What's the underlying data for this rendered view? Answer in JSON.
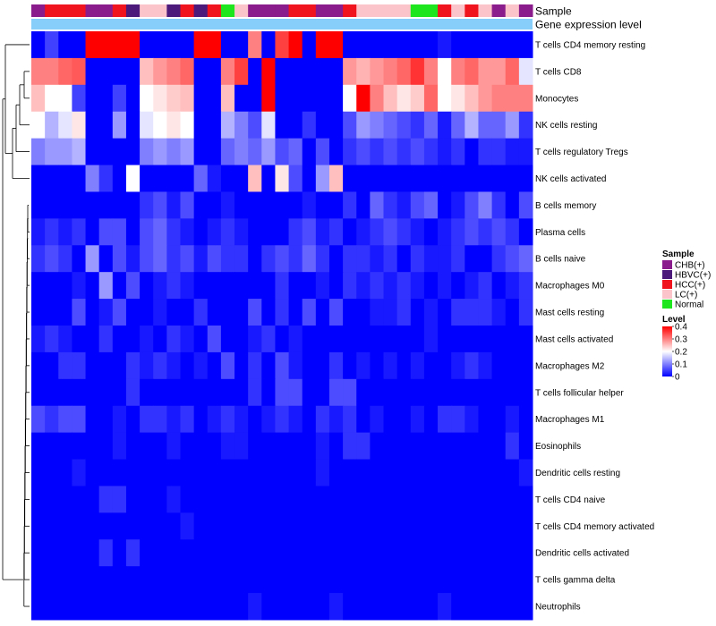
{
  "chart_data": {
    "type": "heatmap",
    "title": "",
    "annotation_rows": [
      "Sample",
      "Gene expression level"
    ],
    "sample_categories": [
      "CHB(+)",
      "HBVC(+)",
      "HCC(+)",
      "LC(+)",
      "Normal"
    ],
    "sample_colors": {
      "CHB(+)": "#8b1c8b",
      "HBVC(+)": "#4b1a7a",
      "HCC(+)": "#f0141e",
      "LC(+)": "#fbc4ca",
      "Normal": "#1ee61e"
    },
    "sample_annotation": [
      "CHB(+)",
      "HCC(+)",
      "HCC(+)",
      "HCC(+)",
      "CHB(+)",
      "CHB(+)",
      "HCC(+)",
      "HBVC(+)",
      "LC(+)",
      "LC(+)",
      "HBVC(+)",
      "HCC(+)",
      "HBVC(+)",
      "HCC(+)",
      "Normal",
      "LC(+)",
      "CHB(+)",
      "CHB(+)",
      "CHB(+)",
      "HCC(+)",
      "HCC(+)",
      "CHB(+)",
      "CHB(+)",
      "HCC(+)",
      "LC(+)",
      "LC(+)",
      "LC(+)",
      "LC(+)",
      "Normal",
      "Normal",
      "HCC(+)",
      "LC(+)",
      "HCC(+)",
      "LC(+)",
      "CHB(+)",
      "LC(+)",
      "CHB(+)"
    ],
    "expression_annotation_color": "#87cefa",
    "rows": [
      "T cells CD4 memory resting",
      "T cells CD8",
      "Monocytes",
      "NK cells resting",
      "T cells regulatory  Tregs",
      "NK cells activated",
      "B cells memory",
      "Plasma cells",
      "B cells naive",
      "Macrophages M0",
      "Mast cells resting",
      "Mast cells activated",
      "Macrophages M2",
      "T cells follicular helper",
      "Macrophages M1",
      "Eosinophils",
      "Dendritic cells resting",
      "T cells CD4 naive",
      "T cells CD4 memory activated",
      "Dendritic cells activated",
      "T cells gamma delta",
      "Neutrophils"
    ],
    "values": [
      [
        0.0,
        0.05,
        0.0,
        0.0,
        0.4,
        0.4,
        0.4,
        0.4,
        0.0,
        0.0,
        0.0,
        0.0,
        0.4,
        0.4,
        0.0,
        0.0,
        0.3,
        0.0,
        0.35,
        0.4,
        0.0,
        0.4,
        0.4,
        0.0,
        0.0,
        0.0,
        0.0,
        0.0,
        0.0,
        0.0,
        0.02,
        0.0,
        0.0,
        0.0,
        0.0,
        0.0,
        0.0
      ],
      [
        0.3,
        0.3,
        0.32,
        0.33,
        0.0,
        0.0,
        0.0,
        0.0,
        0.25,
        0.28,
        0.3,
        0.32,
        0.0,
        0.0,
        0.3,
        0.35,
        0.0,
        0.4,
        0.0,
        0.0,
        0.0,
        0.0,
        0.0,
        0.28,
        0.26,
        0.28,
        0.3,
        0.32,
        0.36,
        0.3,
        0.2,
        0.3,
        0.32,
        0.28,
        0.28,
        0.32,
        0.18
      ],
      [
        0.25,
        0.2,
        0.2,
        0.05,
        0.0,
        0.0,
        0.05,
        0.0,
        0.2,
        0.22,
        0.24,
        0.25,
        0.0,
        0.0,
        0.25,
        0.0,
        0.0,
        0.4,
        0.0,
        0.0,
        0.0,
        0.0,
        0.0,
        0.2,
        0.4,
        0.3,
        0.25,
        0.22,
        0.24,
        0.32,
        0.2,
        0.22,
        0.25,
        0.28,
        0.3,
        0.3,
        0.3
      ],
      [
        0.2,
        0.14,
        0.18,
        0.22,
        0.0,
        0.0,
        0.12,
        0.0,
        0.18,
        0.2,
        0.22,
        0.2,
        0.0,
        0.0,
        0.14,
        0.1,
        0.06,
        0.18,
        0.0,
        0.0,
        0.04,
        0.0,
        0.0,
        0.06,
        0.12,
        0.1,
        0.08,
        0.06,
        0.04,
        0.08,
        0.02,
        0.08,
        0.14,
        0.08,
        0.08,
        0.12,
        0.04
      ],
      [
        0.1,
        0.12,
        0.12,
        0.14,
        0.0,
        0.0,
        0.0,
        0.0,
        0.1,
        0.12,
        0.1,
        0.12,
        0.0,
        0.0,
        0.08,
        0.1,
        0.08,
        0.12,
        0.06,
        0.08,
        0.0,
        0.06,
        0.0,
        0.04,
        0.06,
        0.04,
        0.06,
        0.04,
        0.06,
        0.04,
        0.02,
        0.04,
        0.0,
        0.04,
        0.04,
        0.02,
        0.02
      ],
      [
        0.0,
        0.0,
        0.0,
        0.0,
        0.1,
        0.04,
        0.0,
        0.2,
        0.0,
        0.0,
        0.0,
        0.0,
        0.08,
        0.02,
        0.0,
        0.0,
        0.25,
        0.0,
        0.22,
        0.06,
        0.0,
        0.12,
        0.25,
        0.0,
        0.0,
        0.0,
        0.0,
        0.0,
        0.0,
        0.0,
        0.0,
        0.0,
        0.0,
        0.0,
        0.0,
        0.0,
        0.0
      ],
      [
        0.0,
        0.0,
        0.0,
        0.0,
        0.0,
        0.0,
        0.0,
        0.0,
        0.04,
        0.06,
        0.02,
        0.06,
        0.0,
        0.0,
        0.02,
        0.0,
        0.0,
        0.0,
        0.0,
        0.0,
        0.02,
        0.0,
        0.0,
        0.04,
        0.0,
        0.08,
        0.04,
        0.02,
        0.06,
        0.08,
        0.0,
        0.02,
        0.06,
        0.1,
        0.04,
        0.0,
        0.06
      ],
      [
        0.02,
        0.04,
        0.02,
        0.04,
        0.0,
        0.06,
        0.06,
        0.0,
        0.06,
        0.08,
        0.04,
        0.02,
        0.0,
        0.02,
        0.04,
        0.02,
        0.0,
        0.0,
        0.0,
        0.04,
        0.06,
        0.02,
        0.04,
        0.0,
        0.02,
        0.04,
        0.06,
        0.04,
        0.02,
        0.0,
        0.02,
        0.04,
        0.06,
        0.04,
        0.06,
        0.04,
        0.0
      ],
      [
        0.04,
        0.06,
        0.04,
        0.0,
        0.12,
        0.0,
        0.06,
        0.02,
        0.06,
        0.08,
        0.04,
        0.06,
        0.02,
        0.06,
        0.04,
        0.04,
        0.0,
        0.04,
        0.06,
        0.04,
        0.08,
        0.04,
        0.0,
        0.04,
        0.04,
        0.02,
        0.04,
        0.0,
        0.04,
        0.02,
        0.02,
        0.04,
        0.0,
        0.0,
        0.04,
        0.06,
        0.08
      ],
      [
        0.0,
        0.0,
        0.0,
        0.02,
        0.0,
        0.12,
        0.0,
        0.06,
        0.0,
        0.02,
        0.04,
        0.02,
        0.0,
        0.0,
        0.0,
        0.0,
        0.0,
        0.0,
        0.04,
        0.0,
        0.0,
        0.02,
        0.0,
        0.04,
        0.02,
        0.04,
        0.02,
        0.04,
        0.02,
        0.0,
        0.02,
        0.0,
        0.02,
        0.04,
        0.0,
        0.02,
        0.04
      ],
      [
        0.0,
        0.0,
        0.0,
        0.06,
        0.0,
        0.02,
        0.06,
        0.0,
        0.0,
        0.02,
        0.0,
        0.0,
        0.04,
        0.0,
        0.0,
        0.0,
        0.06,
        0.0,
        0.04,
        0.0,
        0.06,
        0.0,
        0.06,
        0.0,
        0.0,
        0.02,
        0.02,
        0.04,
        0.0,
        0.02,
        0.0,
        0.04,
        0.04,
        0.04,
        0.02,
        0.0,
        0.04
      ],
      [
        0.02,
        0.04,
        0.02,
        0.0,
        0.0,
        0.04,
        0.0,
        0.0,
        0.02,
        0.0,
        0.04,
        0.02,
        0.0,
        0.06,
        0.0,
        0.0,
        0.02,
        0.04,
        0.0,
        0.02,
        0.0,
        0.0,
        0.0,
        0.0,
        0.0,
        0.0,
        0.0,
        0.0,
        0.0,
        0.02,
        0.0,
        0.0,
        0.0,
        0.0,
        0.0,
        0.0,
        0.0
      ],
      [
        0.0,
        0.0,
        0.04,
        0.04,
        0.0,
        0.0,
        0.0,
        0.04,
        0.02,
        0.04,
        0.02,
        0.0,
        0.02,
        0.0,
        0.06,
        0.0,
        0.04,
        0.0,
        0.06,
        0.02,
        0.0,
        0.0,
        0.04,
        0.0,
        0.02,
        0.0,
        0.02,
        0.0,
        0.02,
        0.0,
        0.0,
        0.02,
        0.04,
        0.02,
        0.0,
        0.0,
        0.0
      ],
      [
        0.0,
        0.0,
        0.0,
        0.0,
        0.0,
        0.0,
        0.0,
        0.04,
        0.0,
        0.0,
        0.0,
        0.0,
        0.0,
        0.0,
        0.0,
        0.0,
        0.04,
        0.0,
        0.06,
        0.06,
        0.0,
        0.0,
        0.06,
        0.06,
        0.0,
        0.0,
        0.0,
        0.0,
        0.0,
        0.0,
        0.0,
        0.0,
        0.0,
        0.0,
        0.0,
        0.0,
        0.0
      ],
      [
        0.06,
        0.04,
        0.06,
        0.06,
        0.0,
        0.0,
        0.02,
        0.0,
        0.04,
        0.04,
        0.02,
        0.04,
        0.0,
        0.02,
        0.04,
        0.02,
        0.0,
        0.02,
        0.04,
        0.02,
        0.0,
        0.04,
        0.02,
        0.04,
        0.0,
        0.02,
        0.0,
        0.0,
        0.02,
        0.0,
        0.04,
        0.04,
        0.02,
        0.0,
        0.0,
        0.02,
        0.0
      ],
      [
        0.0,
        0.0,
        0.0,
        0.0,
        0.0,
        0.0,
        0.02,
        0.0,
        0.0,
        0.0,
        0.02,
        0.0,
        0.0,
        0.0,
        0.02,
        0.02,
        0.0,
        0.0,
        0.0,
        0.0,
        0.0,
        0.02,
        0.0,
        0.04,
        0.04,
        0.0,
        0.0,
        0.0,
        0.0,
        0.0,
        0.0,
        0.0,
        0.0,
        0.0,
        0.0,
        0.04,
        0.0
      ],
      [
        0.0,
        0.0,
        0.0,
        0.02,
        0.0,
        0.0,
        0.0,
        0.0,
        0.0,
        0.0,
        0.0,
        0.0,
        0.0,
        0.0,
        0.0,
        0.0,
        0.0,
        0.0,
        0.0,
        0.0,
        0.0,
        0.02,
        0.0,
        0.0,
        0.0,
        0.0,
        0.0,
        0.0,
        0.0,
        0.0,
        0.0,
        0.0,
        0.0,
        0.0,
        0.0,
        0.0,
        0.02
      ],
      [
        0.0,
        0.0,
        0.0,
        0.0,
        0.0,
        0.04,
        0.04,
        0.0,
        0.0,
        0.0,
        0.02,
        0.0,
        0.0,
        0.0,
        0.0,
        0.0,
        0.0,
        0.0,
        0.0,
        0.0,
        0.0,
        0.0,
        0.0,
        0.0,
        0.0,
        0.0,
        0.0,
        0.0,
        0.0,
        0.0,
        0.0,
        0.0,
        0.0,
        0.0,
        0.0,
        0.0,
        0.0
      ],
      [
        0.0,
        0.0,
        0.0,
        0.0,
        0.0,
        0.0,
        0.0,
        0.0,
        0.0,
        0.0,
        0.0,
        0.02,
        0.0,
        0.0,
        0.0,
        0.0,
        0.0,
        0.0,
        0.0,
        0.0,
        0.0,
        0.0,
        0.0,
        0.0,
        0.0,
        0.0,
        0.0,
        0.0,
        0.0,
        0.0,
        0.0,
        0.0,
        0.0,
        0.0,
        0.0,
        0.0,
        0.0
      ],
      [
        0.0,
        0.0,
        0.0,
        0.0,
        0.0,
        0.04,
        0.0,
        0.04,
        0.0,
        0.0,
        0.0,
        0.0,
        0.0,
        0.0,
        0.0,
        0.0,
        0.0,
        0.0,
        0.0,
        0.0,
        0.0,
        0.0,
        0.0,
        0.0,
        0.0,
        0.0,
        0.0,
        0.0,
        0.0,
        0.0,
        0.0,
        0.0,
        0.0,
        0.0,
        0.0,
        0.0,
        0.0
      ],
      [
        0.0,
        0.0,
        0.0,
        0.0,
        0.0,
        0.0,
        0.0,
        0.0,
        0.0,
        0.0,
        0.0,
        0.0,
        0.0,
        0.0,
        0.0,
        0.0,
        0.0,
        0.0,
        0.0,
        0.0,
        0.0,
        0.0,
        0.0,
        0.0,
        0.0,
        0.0,
        0.0,
        0.0,
        0.0,
        0.0,
        0.0,
        0.0,
        0.0,
        0.0,
        0.0,
        0.0,
        0.0
      ],
      [
        0.0,
        0.0,
        0.0,
        0.0,
        0.0,
        0.0,
        0.0,
        0.0,
        0.0,
        0.0,
        0.0,
        0.0,
        0.0,
        0.0,
        0.0,
        0.0,
        0.02,
        0.0,
        0.0,
        0.0,
        0.0,
        0.0,
        0.02,
        0.0,
        0.0,
        0.0,
        0.0,
        0.0,
        0.0,
        0.0,
        0.02,
        0.0,
        0.0,
        0.0,
        0.0,
        0.0,
        0.0
      ]
    ],
    "color_scale": {
      "min": 0,
      "max": 0.4,
      "low": "#0000ff",
      "mid": "#ffffff",
      "high": "#ff0000",
      "mid_value": 0.2
    },
    "legend": {
      "position": "right",
      "sample_title": "Sample",
      "level_title": "Level",
      "level_ticks": [
        0.4,
        0.3,
        0.2,
        0.1,
        0
      ],
      "level_tick_labels": [
        "0.4",
        "0.3",
        "0.2",
        "0.1",
        "0"
      ]
    },
    "dendrogram": "rows"
  }
}
